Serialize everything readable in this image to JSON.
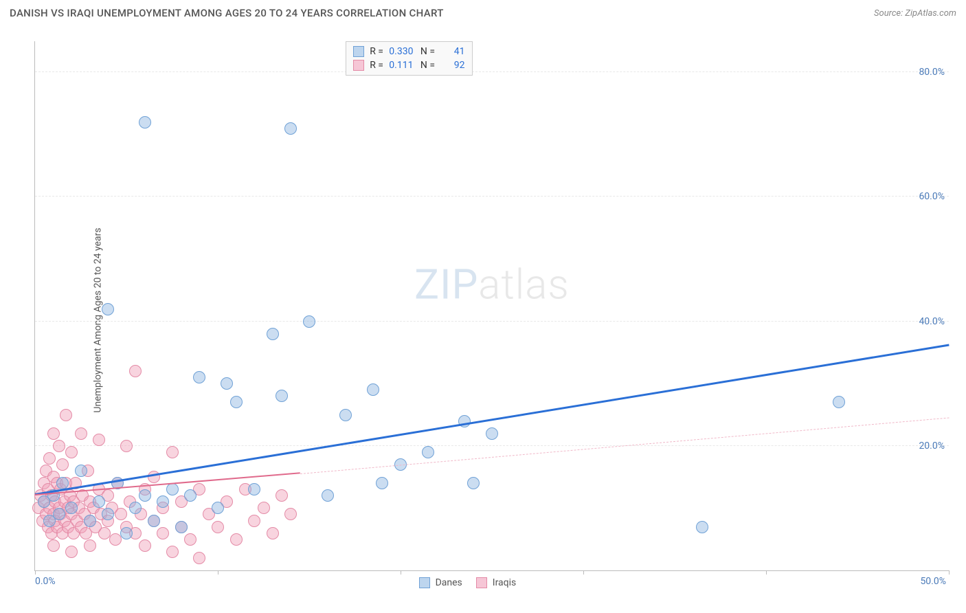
{
  "header": {
    "title": "DANISH VS IRAQI UNEMPLOYMENT AMONG AGES 20 TO 24 YEARS CORRELATION CHART",
    "source": "Source: ZipAtlas.com"
  },
  "ylabel": "Unemployment Among Ages 20 to 24 years",
  "watermark": {
    "zip": "ZIP",
    "atlas": "atlas"
  },
  "chart": {
    "type": "scatter",
    "xlim": [
      0,
      50
    ],
    "ylim": [
      0,
      85
    ],
    "xtick_positions": [
      0,
      10,
      20,
      30,
      40,
      50
    ],
    "xtick_labels_shown": {
      "0": "0.0%",
      "50": "50.0%"
    },
    "ytick_positions": [
      20,
      40,
      60,
      80
    ],
    "ytick_labels": [
      "20.0%",
      "40.0%",
      "60.0%",
      "80.0%"
    ],
    "grid_color": "#e8e8e8",
    "axis_color": "#bbbbbb",
    "label_color": "#4a7ab8",
    "background_color": "#ffffff",
    "marker_radius": 9,
    "marker_stroke_width": 1.5,
    "series": [
      {
        "name": "Danes",
        "fill": "rgba(140,180,225,0.45)",
        "stroke": "#6fa1d6",
        "swatch_fill": "#bdd5ee",
        "swatch_border": "#6fa1d6",
        "trend": {
          "x0": 0,
          "y0": 12,
          "x1": 50,
          "y1": 36,
          "color": "#2a6fd6",
          "width": 3,
          "dash": "solid"
        },
        "trend_extra": null,
        "stats": {
          "r": "0.330",
          "n": "41"
        },
        "points": [
          [
            0.5,
            11
          ],
          [
            0.8,
            8
          ],
          [
            1.0,
            12
          ],
          [
            1.3,
            9
          ],
          [
            1.5,
            14
          ],
          [
            2.0,
            10
          ],
          [
            2.5,
            16
          ],
          [
            3.0,
            8
          ],
          [
            3.5,
            11
          ],
          [
            4.0,
            9
          ],
          [
            4.5,
            14
          ],
          [
            5.0,
            6
          ],
          [
            5.5,
            10
          ],
          [
            6.0,
            12
          ],
          [
            6.5,
            8
          ],
          [
            7.0,
            11
          ],
          [
            7.5,
            13
          ],
          [
            8.0,
            7
          ],
          [
            8.5,
            12
          ],
          [
            9.0,
            31
          ],
          [
            10.0,
            10
          ],
          [
            11.0,
            27
          ],
          [
            12.0,
            13
          ],
          [
            13.0,
            38
          ],
          [
            13.5,
            28
          ],
          [
            14.0,
            71
          ],
          [
            15.0,
            40
          ],
          [
            16.0,
            12
          ],
          [
            17.0,
            25
          ],
          [
            18.5,
            29
          ],
          [
            19.0,
            14
          ],
          [
            20.0,
            17
          ],
          [
            21.5,
            19
          ],
          [
            23.5,
            24
          ],
          [
            24.0,
            14
          ],
          [
            25.0,
            22
          ],
          [
            36.5,
            7
          ],
          [
            44.0,
            27
          ],
          [
            6.0,
            72
          ],
          [
            4.0,
            42
          ],
          [
            10.5,
            30
          ]
        ]
      },
      {
        "name": "Iraqis",
        "fill": "rgba(240,160,185,0.45)",
        "stroke": "#e48aa6",
        "swatch_fill": "#f6c6d6",
        "swatch_border": "#e48aa6",
        "trend": {
          "x0": 0,
          "y0": 12,
          "x1": 14.5,
          "y1": 15.5,
          "color": "#e06a8c",
          "width": 2.5,
          "dash": "solid"
        },
        "trend_extra": {
          "x0": 14.5,
          "y0": 15.5,
          "x1": 50,
          "y1": 24.5,
          "color": "#f0b8c8",
          "width": 1.5,
          "dash": "dashed"
        },
        "stats": {
          "r": "0.111",
          "n": "92"
        },
        "points": [
          [
            0.2,
            10
          ],
          [
            0.3,
            12
          ],
          [
            0.4,
            8
          ],
          [
            0.5,
            11
          ],
          [
            0.5,
            14
          ],
          [
            0.6,
            9
          ],
          [
            0.6,
            16
          ],
          [
            0.7,
            7
          ],
          [
            0.7,
            13
          ],
          [
            0.8,
            10
          ],
          [
            0.8,
            18
          ],
          [
            0.9,
            6
          ],
          [
            0.9,
            12
          ],
          [
            1.0,
            9
          ],
          [
            1.0,
            15
          ],
          [
            1.0,
            22
          ],
          [
            1.1,
            8
          ],
          [
            1.1,
            11
          ],
          [
            1.2,
            14
          ],
          [
            1.2,
            7
          ],
          [
            1.3,
            10
          ],
          [
            1.3,
            20
          ],
          [
            1.4,
            9
          ],
          [
            1.4,
            13
          ],
          [
            1.5,
            6
          ],
          [
            1.5,
            17
          ],
          [
            1.6,
            11
          ],
          [
            1.6,
            8
          ],
          [
            1.7,
            14
          ],
          [
            1.7,
            25
          ],
          [
            1.8,
            10
          ],
          [
            1.8,
            7
          ],
          [
            1.9,
            12
          ],
          [
            2.0,
            9
          ],
          [
            2.0,
            19
          ],
          [
            2.1,
            6
          ],
          [
            2.1,
            11
          ],
          [
            2.2,
            14
          ],
          [
            2.3,
            8
          ],
          [
            2.4,
            10
          ],
          [
            2.5,
            7
          ],
          [
            2.5,
            22
          ],
          [
            2.6,
            12
          ],
          [
            2.7,
            9
          ],
          [
            2.8,
            6
          ],
          [
            2.9,
            16
          ],
          [
            3.0,
            11
          ],
          [
            3.0,
            8
          ],
          [
            3.2,
            10
          ],
          [
            3.3,
            7
          ],
          [
            3.5,
            13
          ],
          [
            3.5,
            21
          ],
          [
            3.6,
            9
          ],
          [
            3.8,
            6
          ],
          [
            4.0,
            12
          ],
          [
            4.0,
            8
          ],
          [
            4.2,
            10
          ],
          [
            4.4,
            5
          ],
          [
            4.5,
            14
          ],
          [
            4.7,
            9
          ],
          [
            5.0,
            7
          ],
          [
            5.0,
            20
          ],
          [
            5.2,
            11
          ],
          [
            5.5,
            6
          ],
          [
            5.5,
            32
          ],
          [
            5.8,
            9
          ],
          [
            6.0,
            13
          ],
          [
            6.0,
            4
          ],
          [
            6.5,
            8
          ],
          [
            6.5,
            15
          ],
          [
            7.0,
            10
          ],
          [
            7.0,
            6
          ],
          [
            7.5,
            19
          ],
          [
            7.5,
            3
          ],
          [
            8.0,
            11
          ],
          [
            8.0,
            7
          ],
          [
            8.5,
            5
          ],
          [
            9.0,
            13
          ],
          [
            9.0,
            2
          ],
          [
            9.5,
            9
          ],
          [
            10.0,
            7
          ],
          [
            10.5,
            11
          ],
          [
            11.0,
            5
          ],
          [
            11.5,
            13
          ],
          [
            12.0,
            8
          ],
          [
            12.5,
            10
          ],
          [
            13.0,
            6
          ],
          [
            13.5,
            12
          ],
          [
            14.0,
            9
          ],
          [
            1.0,
            4
          ],
          [
            2.0,
            3
          ],
          [
            3.0,
            4
          ]
        ]
      }
    ]
  },
  "legend_bottom": {
    "items": [
      {
        "label": "Danes",
        "fill": "#bdd5ee",
        "border": "#6fa1d6"
      },
      {
        "label": "Iraqis",
        "fill": "#f6c6d6",
        "border": "#e48aa6"
      }
    ]
  },
  "legend_top_labels": {
    "r": "R =",
    "n": "N ="
  }
}
